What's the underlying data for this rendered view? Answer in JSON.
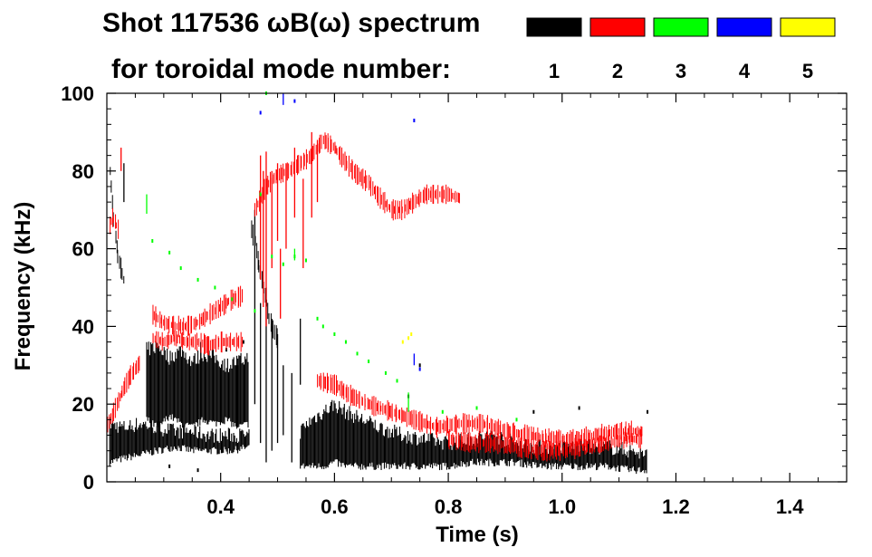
{
  "chart_data": {
    "type": "scatter",
    "title_line1": "Shot 117536 ωB(ω) spectrum",
    "title_line2": "for toroidal mode number:",
    "xlabel": "Time (s)",
    "ylabel": "Frequency (kHz)",
    "xlim": [
      0.2,
      1.5
    ],
    "ylim": [
      0,
      100
    ],
    "x_ticks": [
      0.4,
      0.6,
      0.8,
      1.0,
      1.2,
      1.4
    ],
    "x_tick_labels": [
      "0.4",
      "0.6",
      "0.8",
      "1.0",
      "1.2",
      "1.4"
    ],
    "y_ticks": [
      0,
      20,
      40,
      60,
      80,
      100
    ],
    "y_tick_labels": [
      "0",
      "20",
      "40",
      "60",
      "80",
      "100"
    ],
    "grid": false,
    "legend": {
      "placement": "top-right",
      "entries": [
        {
          "label": "1",
          "color": "#000000"
        },
        {
          "label": "2",
          "color": "#ff0000"
        },
        {
          "label": "3",
          "color": "#00ff00"
        },
        {
          "label": "4",
          "color": "#0000ff"
        },
        {
          "label": "5",
          "color": "#ffff00"
        }
      ]
    },
    "series": [
      {
        "mode": 1,
        "color": "#000000",
        "bands": [
          {
            "t": [
              0.205,
              0.23,
              0.26,
              0.29,
              0.32,
              0.35,
              0.38,
              0.42,
              0.45
            ],
            "lo": [
              5,
              6,
              7,
              8,
              9,
              8,
              8,
              8,
              9
            ],
            "hi": [
              15,
              14,
              15,
              14,
              13,
              13,
              12,
              12,
              12
            ]
          },
          {
            "t": [
              0.27,
              0.29,
              0.31,
              0.33,
              0.35,
              0.37,
              0.39,
              0.41,
              0.43,
              0.45
            ],
            "lo": [
              16,
              14,
              17,
              15,
              14,
              16,
              15,
              16,
              14,
              15
            ],
            "hi": [
              34,
              35,
              32,
              34,
              31,
              33,
              32,
              30,
              31,
              32
            ]
          },
          {
            "t": [
              0.54,
              0.56,
              0.58,
              0.6,
              0.62,
              0.65,
              0.68,
              0.72,
              0.76,
              0.8,
              0.84,
              0.88,
              0.92,
              0.96,
              1.0,
              1.04,
              1.08,
              1.12,
              1.15
            ],
            "lo": [
              4,
              4,
              4,
              5,
              4,
              4,
              4,
              4,
              4,
              4,
              5,
              5,
              5,
              4,
              4,
              4,
              4,
              3,
              3
            ],
            "hi": [
              13,
              16,
              18,
              20,
              18,
              16,
              14,
              12,
              11,
              10,
              11,
              12,
              10,
              9,
              9,
              9,
              9,
              8,
              7
            ]
          }
        ],
        "lines": [
          {
            "t": [
              0.205,
              0.21,
              0.215,
              0.22,
              0.225,
              0.23
            ],
            "f": [
              80,
              72,
              63,
              58,
              55,
              52
            ]
          },
          {
            "t": [
              0.455,
              0.46,
              0.465,
              0.47,
              0.475,
              0.48,
              0.485,
              0.49,
              0.5
            ],
            "f": [
              65,
              62,
              57,
              54,
              50,
              46,
              42,
              40,
              37
            ]
          }
        ],
        "streaks": [
          {
            "t": 0.23,
            "f0": 72,
            "f1": 82
          },
          {
            "t": 0.46,
            "f0": 20,
            "f1": 70
          },
          {
            "t": 0.47,
            "f0": 10,
            "f1": 46
          },
          {
            "t": 0.48,
            "f0": 5,
            "f1": 50
          },
          {
            "t": 0.49,
            "f0": 8,
            "f1": 40
          },
          {
            "t": 0.5,
            "f0": 10,
            "f1": 38
          },
          {
            "t": 0.51,
            "f0": 12,
            "f1": 30
          },
          {
            "t": 0.525,
            "f0": 5,
            "f1": 28
          },
          {
            "t": 0.54,
            "f0": 25,
            "f1": 42
          },
          {
            "t": 0.365,
            "f0": 16,
            "f1": 36
          },
          {
            "t": 0.43,
            "f0": 14,
            "f1": 30
          }
        ],
        "points": [
          [
            0.31,
            4
          ],
          [
            0.36,
            3
          ],
          [
            0.73,
            22
          ],
          [
            0.75,
            30
          ],
          [
            0.95,
            18
          ],
          [
            1.03,
            19
          ],
          [
            1.15,
            18
          ],
          [
            0.41,
            34
          ],
          [
            0.44,
            36
          ]
        ]
      },
      {
        "mode": 2,
        "color": "#ff0000",
        "lines": [
          {
            "t": [
              0.205,
              0.21,
              0.215,
              0.22
            ],
            "f": [
              66,
              68,
              67,
              65
            ]
          },
          {
            "t": [
              0.2,
              0.21,
              0.22,
              0.24,
              0.25,
              0.26
            ],
            "f": [
              14,
              17,
              21,
              27,
              29,
              31
            ]
          },
          {
            "t": [
              0.28,
              0.3,
              0.32,
              0.34,
              0.36,
              0.38,
              0.4,
              0.42,
              0.44
            ],
            "f": [
              43,
              41,
              40,
              40,
              41,
              43,
              45,
              47,
              48
            ]
          },
          {
            "t": [
              0.28,
              0.3,
              0.32,
              0.34,
              0.36,
              0.38,
              0.4,
              0.42,
              0.44
            ],
            "f": [
              37,
              36,
              37,
              36,
              36,
              35,
              36,
              36,
              36
            ]
          },
          {
            "t": [
              0.46,
              0.48,
              0.5,
              0.52,
              0.54,
              0.56,
              0.58,
              0.6,
              0.62,
              0.64,
              0.66,
              0.68,
              0.7,
              0.72,
              0.74,
              0.76,
              0.78,
              0.8,
              0.82
            ],
            "f": [
              70,
              76,
              79,
              80,
              82,
              84,
              88,
              86,
              82,
              79,
              77,
              73,
              70,
              70,
              72,
              74,
              74,
              74,
              73
            ]
          },
          {
            "t": [
              0.57,
              0.6,
              0.63,
              0.66,
              0.7,
              0.74,
              0.78,
              0.82,
              0.86,
              0.9,
              0.94,
              0.98,
              1.02,
              1.06,
              1.1,
              1.14
            ],
            "f": [
              26,
              25,
              22,
              20,
              18,
              16,
              14,
              15,
              15,
              13,
              12,
              11,
              11,
              12,
              13,
              13
            ]
          },
          {
            "t": [
              0.8,
              0.84,
              0.88,
              0.92,
              0.96,
              1.0,
              1.04,
              1.08,
              1.12,
              1.14
            ],
            "f": [
              11,
              10,
              10,
              9,
              8,
              8,
              9,
              10,
              11,
              11
            ]
          }
        ],
        "streaks": [
          {
            "t": 0.47,
            "f0": 52,
            "f1": 84
          },
          {
            "t": 0.475,
            "f0": 45,
            "f1": 80
          },
          {
            "t": 0.48,
            "f0": 40,
            "f1": 85
          },
          {
            "t": 0.49,
            "f0": 55,
            "f1": 80
          },
          {
            "t": 0.5,
            "f0": 62,
            "f1": 82
          },
          {
            "t": 0.515,
            "f0": 60,
            "f1": 82
          },
          {
            "t": 0.53,
            "f0": 68,
            "f1": 86
          },
          {
            "t": 0.545,
            "f0": 55,
            "f1": 78
          },
          {
            "t": 0.56,
            "f0": 68,
            "f1": 90
          },
          {
            "t": 0.57,
            "f0": 72,
            "f1": 88
          },
          {
            "t": 0.505,
            "f0": 42,
            "f1": 60
          },
          {
            "t": 0.225,
            "f0": 80,
            "f1": 86
          }
        ],
        "points": []
      },
      {
        "mode": 3,
        "color": "#00ff00",
        "lines": [],
        "streaks": [
          {
            "t": 0.27,
            "f0": 69,
            "f1": 74
          },
          {
            "t": 0.53,
            "f0": 57,
            "f1": 60
          },
          {
            "t": 0.73,
            "f0": 18,
            "f1": 23
          }
        ],
        "points": [
          [
            0.28,
            62
          ],
          [
            0.31,
            59
          ],
          [
            0.33,
            55
          ],
          [
            0.36,
            52
          ],
          [
            0.39,
            50
          ],
          [
            0.42,
            47
          ],
          [
            0.46,
            44
          ],
          [
            0.49,
            58
          ],
          [
            0.51,
            56
          ],
          [
            0.53,
            58
          ],
          [
            0.55,
            57
          ],
          [
            0.57,
            42
          ],
          [
            0.58,
            40
          ],
          [
            0.6,
            38
          ],
          [
            0.62,
            36
          ],
          [
            0.64,
            33
          ],
          [
            0.66,
            31
          ],
          [
            0.69,
            28
          ],
          [
            0.71,
            26
          ],
          [
            0.79,
            18
          ],
          [
            0.85,
            19
          ],
          [
            0.92,
            16
          ],
          [
            0.47,
            74
          ],
          [
            0.48,
            100
          ]
        ]
      },
      {
        "mode": 4,
        "color": "#0000ff",
        "lines": [],
        "streaks": [
          {
            "t": 0.51,
            "f0": 97,
            "f1": 100
          },
          {
            "t": 0.74,
            "f0": 30,
            "f1": 33
          }
        ],
        "points": [
          [
            0.47,
            95
          ],
          [
            0.53,
            98
          ],
          [
            0.74,
            93
          ],
          [
            0.75,
            29
          ]
        ]
      },
      {
        "mode": 5,
        "color": "#ffff00",
        "lines": [],
        "streaks": [],
        "points": [
          [
            0.73,
            37
          ],
          [
            0.735,
            38
          ],
          [
            0.72,
            36
          ]
        ]
      }
    ]
  }
}
